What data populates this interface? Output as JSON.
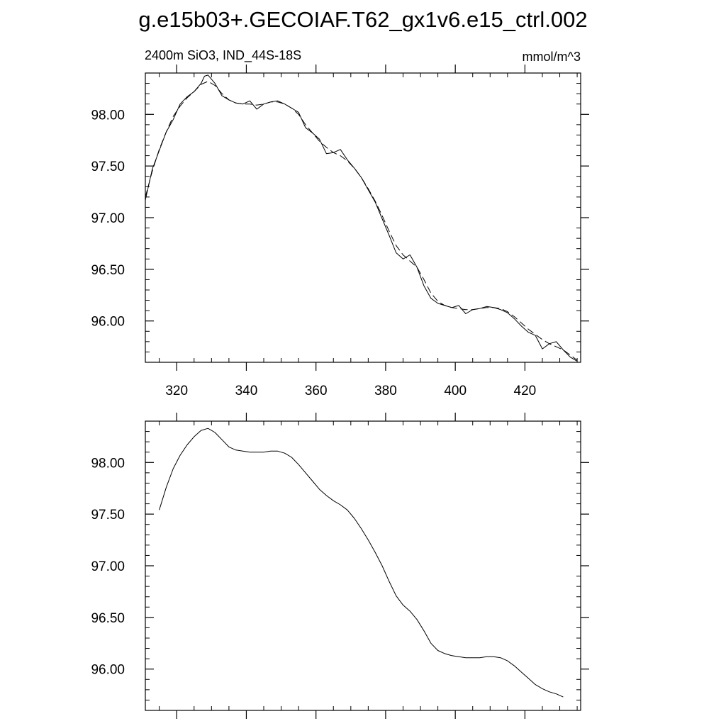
{
  "title": "g.e15b03+.GECOIAF.T62_gx1v6.e15_ctrl.002",
  "subtitle_left": "2400m SiO3, IND_44S-18S",
  "subtitle_right": "mmol/m^3",
  "chart_data": [
    {
      "type": "line",
      "xlim": [
        311,
        436
      ],
      "ylim": [
        95.6,
        98.4
      ],
      "x_ticks": [
        320,
        340,
        360,
        380,
        400,
        420
      ],
      "y_ticks": [
        96.0,
        96.5,
        97.0,
        97.5,
        98.0
      ],
      "x_tick_labels": [
        "320",
        "340",
        "360",
        "380",
        "400",
        "420"
      ],
      "y_tick_labels": [
        "96.00",
        "96.50",
        "97.00",
        "97.50",
        "98.00"
      ],
      "series": [
        {
          "style": "solid",
          "x": [
            311,
            313,
            315,
            317,
            319,
            321,
            323,
            325,
            327,
            328,
            329,
            331,
            333,
            335,
            337,
            339,
            341,
            343,
            345,
            347,
            349,
            351,
            353,
            355,
            357,
            359,
            361,
            363,
            365,
            367,
            369,
            371,
            373,
            375,
            377,
            379,
            381,
            383,
            385,
            387,
            389,
            391,
            393,
            395,
            397,
            399,
            401,
            403,
            405,
            407,
            409,
            411,
            413,
            415,
            417,
            419,
            421,
            423,
            425,
            427,
            429,
            431,
            433,
            435
          ],
          "y": [
            97.17,
            97.47,
            97.65,
            97.83,
            97.95,
            98.1,
            98.17,
            98.22,
            98.3,
            98.37,
            98.38,
            98.3,
            98.18,
            98.14,
            98.11,
            98.1,
            98.13,
            98.05,
            98.1,
            98.12,
            98.13,
            98.1,
            98.06,
            98.02,
            97.87,
            97.82,
            97.76,
            97.62,
            97.63,
            97.66,
            97.56,
            97.48,
            97.39,
            97.27,
            97.15,
            96.99,
            96.83,
            96.66,
            96.6,
            96.64,
            96.52,
            96.34,
            96.22,
            96.17,
            96.15,
            96.13,
            96.15,
            96.07,
            96.11,
            96.12,
            96.14,
            96.13,
            96.11,
            96.08,
            96.02,
            95.95,
            95.89,
            95.86,
            95.73,
            95.78,
            95.8,
            95.72,
            95.65,
            95.61
          ]
        },
        {
          "style": "dashed",
          "x": [
            311,
            313,
            315,
            317,
            319,
            321,
            323,
            325,
            327,
            329,
            331,
            333,
            335,
            337,
            339,
            341,
            343,
            345,
            347,
            349,
            351,
            353,
            355,
            357,
            359,
            361,
            363,
            365,
            367,
            369,
            371,
            373,
            375,
            377,
            379,
            381,
            383,
            385,
            387,
            389,
            391,
            393,
            395,
            397,
            399,
            401,
            403,
            405,
            407,
            409,
            411,
            413,
            415,
            417,
            419,
            421,
            423,
            425,
            427,
            429,
            431,
            433,
            435
          ],
          "y": [
            97.2,
            97.45,
            97.66,
            97.83,
            97.98,
            98.08,
            98.16,
            98.22,
            98.29,
            98.32,
            98.28,
            98.2,
            98.14,
            98.11,
            98.1,
            98.1,
            98.09,
            98.1,
            98.12,
            98.12,
            98.1,
            98.06,
            98.0,
            97.9,
            97.82,
            97.74,
            97.68,
            97.63,
            97.6,
            97.55,
            97.48,
            97.39,
            97.28,
            97.16,
            97.02,
            96.87,
            96.73,
            96.64,
            96.58,
            96.52,
            96.4,
            96.27,
            96.19,
            96.15,
            96.13,
            96.12,
            96.11,
            96.11,
            96.12,
            96.13,
            96.13,
            96.12,
            96.09,
            96.04,
            95.98,
            95.92,
            95.87,
            95.82,
            95.78,
            95.75,
            95.72,
            95.67,
            95.62
          ]
        }
      ]
    },
    {
      "type": "line",
      "xlim": [
        311,
        436
      ],
      "ylim": [
        95.6,
        98.4
      ],
      "x_ticks": [
        320,
        340,
        360,
        380,
        400,
        420
      ],
      "y_ticks": [
        96.0,
        96.5,
        97.0,
        97.5,
        98.0
      ],
      "y_tick_labels": [
        "96.00",
        "96.50",
        "97.00",
        "97.50",
        "98.00"
      ],
      "series": [
        {
          "style": "solid",
          "x": [
            315,
            317,
            319,
            321,
            323,
            325,
            327,
            329,
            331,
            333,
            335,
            337,
            339,
            341,
            343,
            345,
            347,
            349,
            351,
            353,
            355,
            357,
            359,
            361,
            363,
            365,
            367,
            369,
            371,
            373,
            375,
            377,
            379,
            381,
            383,
            385,
            387,
            389,
            391,
            393,
            395,
            397,
            399,
            401,
            403,
            405,
            407,
            409,
            411,
            413,
            415,
            417,
            419,
            421,
            423,
            425,
            427,
            429,
            431
          ],
          "y": [
            97.54,
            97.76,
            97.94,
            98.07,
            98.17,
            98.25,
            98.31,
            98.33,
            98.29,
            98.22,
            98.15,
            98.12,
            98.11,
            98.1,
            98.1,
            98.1,
            98.11,
            98.11,
            98.09,
            98.05,
            97.98,
            97.9,
            97.82,
            97.74,
            97.68,
            97.63,
            97.59,
            97.54,
            97.46,
            97.36,
            97.25,
            97.13,
            97.0,
            96.85,
            96.71,
            96.62,
            96.56,
            96.48,
            96.37,
            96.25,
            96.18,
            96.15,
            96.13,
            96.12,
            96.11,
            96.11,
            96.11,
            96.12,
            96.12,
            96.11,
            96.08,
            96.03,
            95.97,
            95.91,
            95.85,
            95.81,
            95.78,
            95.76,
            95.73
          ]
        }
      ]
    }
  ]
}
